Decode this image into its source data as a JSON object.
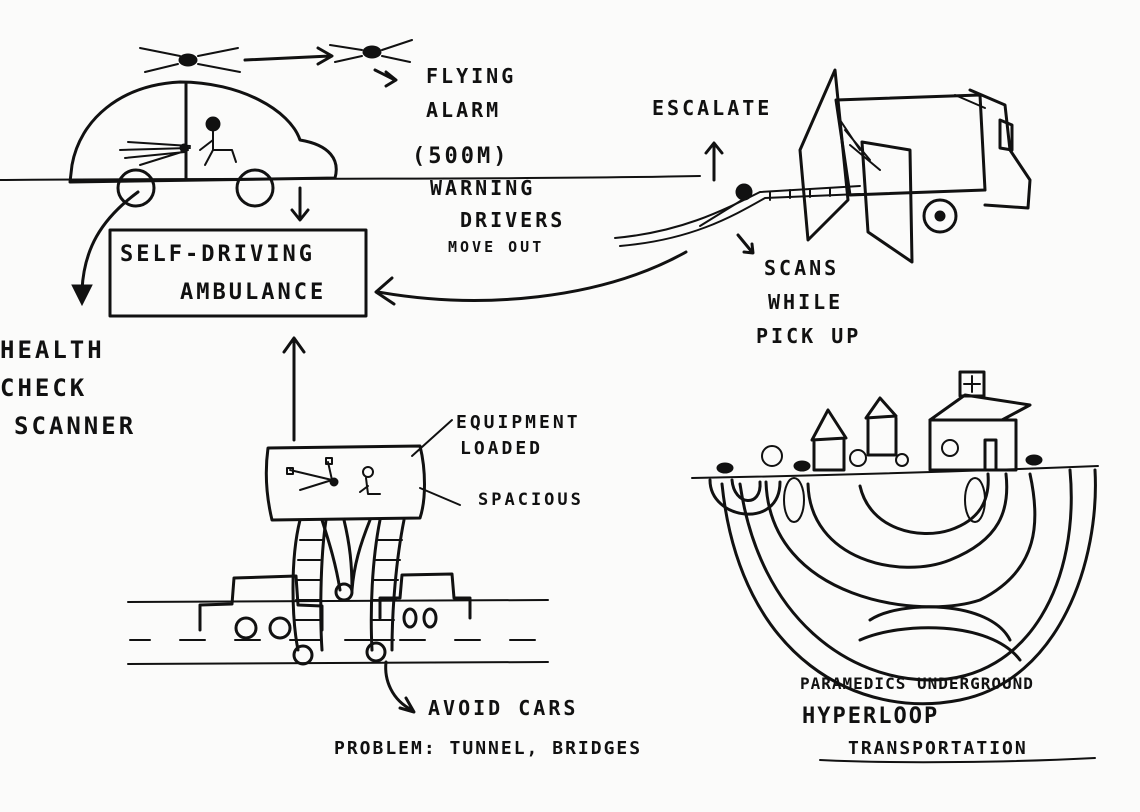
{
  "sketch": {
    "labels": {
      "flying": "FLYING",
      "alarm": "ALARM",
      "range": "(500M)",
      "warning": "WARNING",
      "drivers": "DRIVERS",
      "move_out": "MOVE OUT",
      "self_driving": "SELF-DRIVING",
      "ambulance": "AMBULANCE",
      "health": "HEALTH",
      "check": "CHECK",
      "scanner": "SCANNER",
      "escalate": "ESCALATE",
      "scans": "SCANS",
      "while": "WHILE",
      "pick_up": "PICK UP",
      "equipment": "EQUIPMENT",
      "loaded": "LOADED",
      "spacious": "SPACIOUS",
      "avoid_cars": "AVOID CARS",
      "problem": "PROBLEM: TUNNEL, BRIDGES",
      "paramedics_underground": "PARAMEDICS UNDERGROUND",
      "hyperloop": "HYPERLOOP",
      "transportation": "TRANSPORTATION"
    },
    "icons": [
      "drone-icon",
      "car-icon",
      "ambulance-truck-icon",
      "walker-vehicle-icon",
      "hospital-icon",
      "hyperloop-tunnel-icon"
    ],
    "ink_color": "#111111",
    "paper_color": "#fbfbfa"
  }
}
